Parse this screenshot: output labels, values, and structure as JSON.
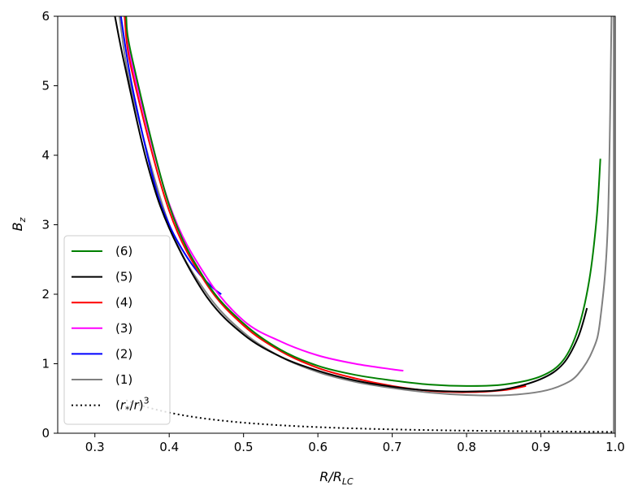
{
  "chart_data": {
    "type": "line",
    "xlabel": {
      "base": "R/R",
      "sub": "LC"
    },
    "ylabel": {
      "base": "B",
      "sub": "z"
    },
    "xlim": [
      0.25,
      1.0
    ],
    "ylim": [
      0,
      6
    ],
    "xticks": [
      0.3,
      0.4,
      0.5,
      0.6,
      0.7,
      0.8,
      0.9,
      1.0
    ],
    "xtick_labels": [
      "0.3",
      "0.4",
      "0.5",
      "0.6",
      "0.7",
      "0.8",
      "0.9",
      "1.0"
    ],
    "yticks": [
      0,
      1,
      2,
      3,
      4,
      5,
      6
    ],
    "ytick_labels": [
      "0",
      "1",
      "2",
      "3",
      "4",
      "5",
      "6"
    ],
    "grid": false,
    "legend_position": "lower-left",
    "legend": [
      {
        "label": "(6)",
        "color": "#008000",
        "style": "solid"
      },
      {
        "label": "(5)",
        "color": "#000000",
        "style": "solid"
      },
      {
        "label": "(4)",
        "color": "#ff0000",
        "style": "solid"
      },
      {
        "label": "(3)",
        "color": "#ff00ff",
        "style": "solid"
      },
      {
        "label": "(2)",
        "color": "#0000ff",
        "style": "solid"
      },
      {
        "label": "(1)",
        "color": "#808080",
        "style": "solid"
      },
      {
        "label": "(r*/r)^3",
        "color": "#000000",
        "style": "dotted"
      }
    ],
    "series": [
      {
        "name": "(1)",
        "color": "#808080",
        "style": "solid",
        "x": [
          0.333,
          0.35,
          0.4,
          0.45,
          0.5,
          0.55,
          0.6,
          0.65,
          0.7,
          0.75,
          0.8,
          0.85,
          0.9,
          0.93,
          0.95,
          0.97,
          0.98,
          0.99,
          0.995
        ],
        "y": [
          6.0,
          4.9,
          3.0,
          2.02,
          1.45,
          1.1,
          0.88,
          0.74,
          0.65,
          0.585,
          0.55,
          0.545,
          0.6,
          0.7,
          0.85,
          1.2,
          1.65,
          3.0,
          6.0
        ]
      },
      {
        "name": "(2)",
        "color": "#0000ff",
        "style": "solid",
        "x": [
          0.335,
          0.35,
          0.38,
          0.4,
          0.42,
          0.44,
          0.46,
          0.47
        ],
        "y": [
          6.0,
          5.0,
          3.6,
          3.0,
          2.6,
          2.3,
          2.08,
          2.0
        ]
      },
      {
        "name": "(3)",
        "color": "#ff00ff",
        "style": "solid",
        "x": [
          0.34,
          0.35,
          0.4,
          0.45,
          0.5,
          0.55,
          0.6,
          0.65,
          0.7,
          0.715
        ],
        "y": [
          6.0,
          5.3,
          3.3,
          2.25,
          1.62,
          1.32,
          1.12,
          1.0,
          0.92,
          0.9
        ]
      },
      {
        "name": "(4)",
        "color": "#ff0000",
        "style": "solid",
        "x": [
          0.34,
          0.35,
          0.4,
          0.45,
          0.5,
          0.55,
          0.6,
          0.65,
          0.7,
          0.75,
          0.8,
          0.85,
          0.88
        ],
        "y": [
          6.0,
          5.2,
          3.2,
          2.15,
          1.55,
          1.18,
          0.94,
          0.79,
          0.68,
          0.61,
          0.59,
          0.62,
          0.68
        ]
      },
      {
        "name": "(5)",
        "color": "#000000",
        "style": "solid",
        "x": [
          0.327,
          0.34,
          0.37,
          0.4,
          0.45,
          0.5,
          0.55,
          0.6,
          0.65,
          0.7,
          0.75,
          0.8,
          0.85,
          0.9,
          0.93,
          0.95,
          0.962
        ],
        "y": [
          6.0,
          5.3,
          3.9,
          2.95,
          1.97,
          1.42,
          1.1,
          0.9,
          0.76,
          0.67,
          0.615,
          0.6,
          0.63,
          0.78,
          1.0,
          1.38,
          1.8
        ]
      },
      {
        "name": "(6)",
        "color": "#008000",
        "style": "solid",
        "x": [
          0.342,
          0.35,
          0.4,
          0.45,
          0.5,
          0.55,
          0.6,
          0.65,
          0.7,
          0.75,
          0.8,
          0.85,
          0.9,
          0.93,
          0.95,
          0.965,
          0.975,
          0.98
        ],
        "y": [
          6.0,
          5.4,
          3.28,
          2.18,
          1.58,
          1.2,
          0.97,
          0.84,
          0.76,
          0.7,
          0.68,
          0.7,
          0.82,
          1.05,
          1.5,
          2.2,
          3.1,
          3.95
        ]
      }
    ],
    "reference_curve": {
      "name": "(r*/r)^3",
      "color": "#000000",
      "style": "dotted",
      "function": "0.019/x^3",
      "x_range": [
        0.342,
        1.0
      ]
    },
    "vertical_line": {
      "x": 0.998,
      "color": "#808080"
    }
  }
}
